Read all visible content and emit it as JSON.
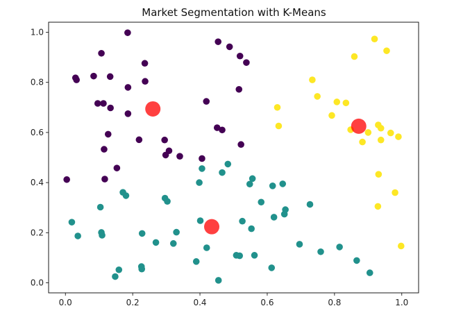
{
  "chart_data": {
    "type": "scatter",
    "title": "Market Segmentation with K-Means",
    "xlabel": "",
    "ylabel": "",
    "xlim": [
      -0.05,
      1.05
    ],
    "ylim": [
      -0.04,
      1.04
    ],
    "x_ticks": [
      0.0,
      0.2,
      0.4,
      0.6,
      0.8,
      1.0
    ],
    "x_tick_labels": [
      "0.0",
      "0.2",
      "0.4",
      "0.6",
      "0.8",
      "1.0"
    ],
    "y_ticks": [
      0.0,
      0.2,
      0.4,
      0.6,
      0.8,
      1.0
    ],
    "y_tick_labels": [
      "0.0",
      "0.2",
      "0.4",
      "0.6",
      "0.8",
      "1.0"
    ],
    "grid": false,
    "series": [
      {
        "color": "#440154",
        "points": [
          [
            0.185,
            0.998
          ],
          [
            0.107,
            0.916
          ],
          [
            0.236,
            0.876
          ],
          [
            0.03,
            0.818
          ],
          [
            0.033,
            0.81
          ],
          [
            0.084,
            0.825
          ],
          [
            0.133,
            0.823
          ],
          [
            0.237,
            0.804
          ],
          [
            0.186,
            0.78
          ],
          [
            0.096,
            0.716
          ],
          [
            0.113,
            0.716
          ],
          [
            0.134,
            0.698
          ],
          [
            0.186,
            0.675
          ],
          [
            0.127,
            0.593
          ],
          [
            0.115,
            0.533
          ],
          [
            0.219,
            0.571
          ],
          [
            0.295,
            0.57
          ],
          [
            0.308,
            0.527
          ],
          [
            0.298,
            0.51
          ],
          [
            0.34,
            0.505
          ],
          [
            0.004,
            0.412
          ],
          [
            0.117,
            0.414
          ],
          [
            0.153,
            0.458
          ],
          [
            0.406,
            0.496
          ],
          [
            0.419,
            0.724
          ],
          [
            0.454,
            0.962
          ],
          [
            0.488,
            0.942
          ],
          [
            0.519,
            0.905
          ],
          [
            0.538,
            0.879
          ],
          [
            0.516,
            0.772
          ],
          [
            0.451,
            0.619
          ],
          [
            0.466,
            0.61
          ],
          [
            0.522,
            0.552
          ]
        ]
      },
      {
        "color": "#21918c",
        "points": [
          [
            0.406,
            0.456
          ],
          [
            0.466,
            0.44
          ],
          [
            0.483,
            0.474
          ],
          [
            0.398,
            0.4
          ],
          [
            0.556,
            0.416
          ],
          [
            0.548,
            0.394
          ],
          [
            0.616,
            0.387
          ],
          [
            0.646,
            0.395
          ],
          [
            0.171,
            0.361
          ],
          [
            0.18,
            0.348
          ],
          [
            0.104,
            0.302
          ],
          [
            0.296,
            0.338
          ],
          [
            0.303,
            0.325
          ],
          [
            0.582,
            0.322
          ],
          [
            0.654,
            0.292
          ],
          [
            0.651,
            0.274
          ],
          [
            0.62,
            0.262
          ],
          [
            0.727,
            0.313
          ],
          [
            0.019,
            0.242
          ],
          [
            0.037,
            0.187
          ],
          [
            0.107,
            0.201
          ],
          [
            0.109,
            0.19
          ],
          [
            0.228,
            0.197
          ],
          [
            0.269,
            0.161
          ],
          [
            0.33,
            0.202
          ],
          [
            0.321,
            0.157
          ],
          [
            0.401,
            0.248
          ],
          [
            0.526,
            0.246
          ],
          [
            0.553,
            0.216
          ],
          [
            0.42,
            0.14
          ],
          [
            0.508,
            0.11
          ],
          [
            0.518,
            0.108
          ],
          [
            0.562,
            0.11
          ],
          [
            0.696,
            0.154
          ],
          [
            0.759,
            0.124
          ],
          [
            0.815,
            0.143
          ],
          [
            0.866,
            0.089
          ],
          [
            0.905,
            0.04
          ],
          [
            0.613,
            0.06
          ],
          [
            0.389,
            0.085
          ],
          [
            0.455,
            0.01
          ],
          [
            0.226,
            0.065
          ],
          [
            0.227,
            0.055
          ],
          [
            0.159,
            0.052
          ],
          [
            0.148,
            0.025
          ]
        ]
      },
      {
        "color": "#fde725",
        "points": [
          [
            0.919,
            0.973
          ],
          [
            0.955,
            0.926
          ],
          [
            0.859,
            0.903
          ],
          [
            0.734,
            0.81
          ],
          [
            0.749,
            0.744
          ],
          [
            0.807,
            0.722
          ],
          [
            0.834,
            0.718
          ],
          [
            0.63,
            0.7
          ],
          [
            0.792,
            0.668
          ],
          [
            0.634,
            0.626
          ],
          [
            0.848,
            0.611
          ],
          [
            0.93,
            0.63
          ],
          [
            0.938,
            0.617
          ],
          [
            0.9,
            0.6
          ],
          [
            0.967,
            0.598
          ],
          [
            0.99,
            0.583
          ],
          [
            0.938,
            0.57
          ],
          [
            0.883,
            0.562
          ],
          [
            0.931,
            0.433
          ],
          [
            0.98,
            0.36
          ],
          [
            0.929,
            0.305
          ],
          [
            0.998,
            0.147
          ]
        ]
      }
    ],
    "centroids": {
      "color": "#ff0000",
      "points": [
        [
          0.26,
          0.694
        ],
        [
          0.435,
          0.224
        ],
        [
          0.872,
          0.625
        ]
      ]
    }
  }
}
